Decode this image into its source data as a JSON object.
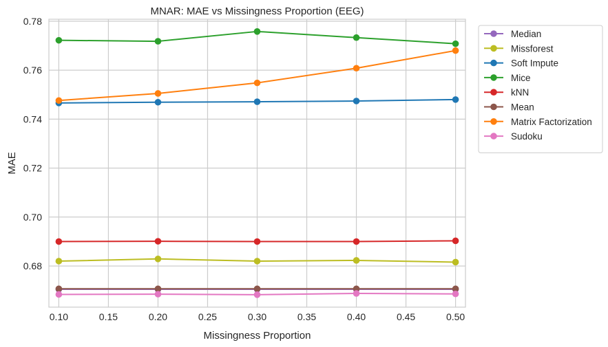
{
  "chart_data": {
    "type": "line",
    "title": "MNAR: MAE vs Missingness Proportion (EEG)",
    "xlabel": "Missingness Proportion",
    "ylabel": "MAE",
    "xlim": [
      0.09,
      0.51
    ],
    "ylim": [
      0.6632,
      0.7808
    ],
    "xticks": [
      "0.10",
      "0.15",
      "0.20",
      "0.25",
      "0.30",
      "0.35",
      "0.40",
      "0.45",
      "0.50"
    ],
    "yticks": [
      "0.68",
      "0.70",
      "0.72",
      "0.74",
      "0.76",
      "0.78"
    ],
    "grid": true,
    "legend_position": "outside-right",
    "x": [
      0.1,
      0.2,
      0.3,
      0.4,
      0.5
    ],
    "series": [
      {
        "name": "Median",
        "color": "#9467bd",
        "values": [
          0.6705,
          0.6705,
          0.6705,
          0.6705,
          0.6705
        ]
      },
      {
        "name": "Missforest",
        "color": "#bcbd22",
        "values": [
          0.682,
          0.6829,
          0.682,
          0.6823,
          0.6816
        ]
      },
      {
        "name": "Soft Impute",
        "color": "#1f77b4",
        "values": [
          0.7466,
          0.7469,
          0.7471,
          0.7474,
          0.748
        ]
      },
      {
        "name": "Mice",
        "color": "#2ca02c",
        "values": [
          0.7722,
          0.7718,
          0.7758,
          0.7733,
          0.7708
        ]
      },
      {
        "name": "kNN",
        "color": "#d62728",
        "values": [
          0.69,
          0.6901,
          0.69,
          0.69,
          0.6903
        ]
      },
      {
        "name": "Mean",
        "color": "#8c564b",
        "values": [
          0.6707,
          0.6707,
          0.6707,
          0.6707,
          0.6707
        ]
      },
      {
        "name": "Matrix Factorization",
        "color": "#ff7f0e",
        "values": [
          0.7476,
          0.7505,
          0.7548,
          0.7608,
          0.768
        ]
      },
      {
        "name": "Sudoku",
        "color": "#e377c2",
        "values": [
          0.6684,
          0.6685,
          0.6683,
          0.6688,
          0.6686
        ]
      }
    ]
  }
}
